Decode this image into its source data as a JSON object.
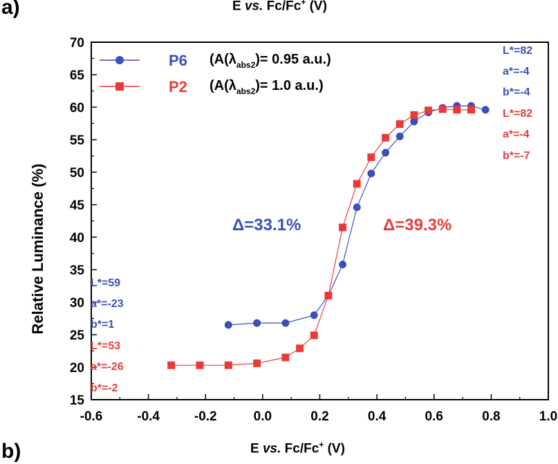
{
  "panel_labels": {
    "a": "a)",
    "b": "b)"
  },
  "top_axis_label_parts": [
    "E ",
    "vs.",
    " Fc/Fc",
    "+",
    " (V)"
  ],
  "colors": {
    "p6": "#3b4fb8",
    "p2": "#e83a3a",
    "axis": "#000000"
  },
  "chart_data": {
    "type": "line",
    "xlabel_parts": [
      "E ",
      "vs.",
      " Fc/Fc",
      "+",
      " (V)"
    ],
    "ylabel": "Relative Luminance (%)",
    "xlim": [
      -0.6,
      1.0
    ],
    "ylim": [
      15,
      70
    ],
    "xticks": [
      "-0.6",
      "-0.4",
      "-0.2",
      "0.0",
      "0.2",
      "0.4",
      "0.6",
      "0.8",
      "1.0"
    ],
    "yticks": [
      "15",
      "20",
      "25",
      "30",
      "35",
      "40",
      "45",
      "50",
      "55",
      "60",
      "65",
      "70"
    ],
    "grid": false,
    "legend_position": "top-left",
    "series": [
      {
        "name": "P6",
        "legend_note": "(A(λabs2)= 0.95 a.u.)",
        "legend_note_parts": [
          "(A(λ",
          "abs2",
          ")= 0.95 a.u.)"
        ],
        "marker": "circle",
        "color": "#3b4fb8",
        "x": [
          -0.12,
          -0.02,
          0.08,
          0.18,
          0.23,
          0.28,
          0.33,
          0.38,
          0.43,
          0.48,
          0.53,
          0.58,
          0.63,
          0.68,
          0.73,
          0.78
        ],
        "y": [
          26.5,
          26.8,
          26.8,
          28.0,
          31.0,
          35.8,
          44.6,
          49.8,
          53.0,
          55.5,
          57.8,
          59.2,
          59.9,
          60.2,
          60.2,
          59.6
        ]
      },
      {
        "name": "P2",
        "legend_note": "(A(λabs2)= 1.0 a.u.)",
        "legend_note_parts": [
          "(A(λ",
          "abs2",
          ")= 1.0 a.u.)"
        ],
        "marker": "square",
        "color": "#e83a3a",
        "x": [
          -0.32,
          -0.22,
          -0.12,
          -0.02,
          0.08,
          0.13,
          0.18,
          0.23,
          0.28,
          0.33,
          0.38,
          0.43,
          0.48,
          0.53,
          0.58,
          0.63,
          0.68,
          0.73
        ],
        "y": [
          20.3,
          20.3,
          20.3,
          20.6,
          21.5,
          22.9,
          24.9,
          31.0,
          41.5,
          48.2,
          52.3,
          55.3,
          57.4,
          58.8,
          59.5,
          59.7,
          59.6,
          59.6
        ]
      }
    ],
    "annotations": {
      "delta_p6": "Δ=33.1%",
      "delta_p2": "Δ=39.3%",
      "left_p6": [
        "L*=59",
        "a*=-23",
        "b*=1"
      ],
      "left_p2": [
        "L*=53",
        "a*=-26",
        "b*=-2"
      ],
      "right_p6": [
        "L*=82",
        "a*=-4",
        "b*=-4"
      ],
      "right_p2": [
        "L*=82",
        "a*=-4",
        "b*=-7"
      ]
    }
  }
}
